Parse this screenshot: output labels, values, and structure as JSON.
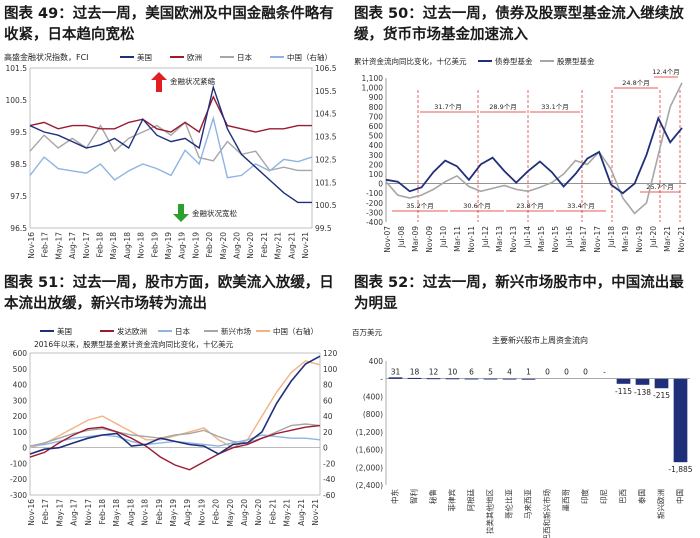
{
  "panels": [
    {
      "title": "图表 49：过去一周，美国欧洲及中国金融条件略有收紧，日本趋向宽松"
    },
    {
      "title": "图表 50：过去一周，债券及股票型基金流入继续放缓，货币市场基金加速流入"
    },
    {
      "title": "图表 51：过去一周，股市方面，欧美流入放缓，日本流出放缓，新兴市场转为流出"
    },
    {
      "title": "图表 52：过去一周，新兴市场股市中，中国流出最为明显"
    }
  ],
  "colors": {
    "navy": "#1f2f7a",
    "darkred": "#9b1b30",
    "gray": "#a6a6a6",
    "lightblue": "#8fb4e3",
    "orange": "#f4b183",
    "red": "#e02020",
    "green": "#2ca02c"
  },
  "chart_data": [
    {
      "type": "line",
      "title": "高盛金融状况指数，FCI",
      "legend": [
        "美国",
        "欧洲",
        "日本",
        "中国（右轴）"
      ],
      "yticks_left": [
        "101.5",
        "100.5",
        "99.5",
        "98.5",
        "97.5",
        "96.5"
      ],
      "yticks_right": [
        "106.5",
        "105.5",
        "104.5",
        "103.5",
        "102.5",
        "101.5",
        "100.5",
        "99.5"
      ],
      "ylim_left": [
        96.5,
        101.5
      ],
      "ylim_right": [
        99.5,
        106.5
      ],
      "xticks": [
        "Nov-16",
        "Feb-17",
        "May-17",
        "Aug-17",
        "Nov-17",
        "Feb-18",
        "May-18",
        "Aug-18",
        "Nov-18",
        "Feb-19",
        "May-19",
        "Aug-19",
        "Nov-19",
        "Feb-20",
        "May-20",
        "Aug-20",
        "Nov-20",
        "Feb-21",
        "May-21",
        "Aug-21",
        "Nov-21"
      ],
      "annotations": [
        "金融状况紧缩",
        "金融状况宽松"
      ],
      "series": [
        {
          "name": "美国",
          "values": [
            99.7,
            99.5,
            99.4,
            99.2,
            99.0,
            99.1,
            99.3,
            99.0,
            99.9,
            99.4,
            99.2,
            99.3,
            99.0,
            100.9,
            99.6,
            98.8,
            98.4,
            98.0,
            97.6,
            97.3,
            97.3
          ]
        },
        {
          "name": "欧洲",
          "values": [
            99.7,
            99.8,
            99.6,
            99.7,
            99.7,
            99.6,
            99.6,
            99.8,
            99.9,
            99.6,
            99.5,
            99.8,
            99.5,
            100.6,
            99.7,
            99.6,
            99.5,
            99.6,
            99.6,
            99.7,
            99.7
          ]
        },
        {
          "name": "日本",
          "values": [
            98.9,
            99.4,
            99.0,
            99.3,
            99.0,
            99.7,
            98.9,
            99.3,
            99.5,
            99.7,
            99.4,
            99.8,
            98.7,
            98.6,
            99.2,
            98.8,
            98.9,
            98.3,
            98.4,
            98.3,
            98.3
          ]
        },
        {
          "name": "中国（右轴）",
          "values": [
            101.8,
            102.6,
            102.1,
            102.0,
            101.9,
            102.3,
            101.6,
            102.0,
            102.3,
            102.1,
            101.8,
            102.9,
            102.3,
            104.3,
            101.7,
            101.8,
            102.3,
            102.0,
            102.5,
            102.4,
            102.6
          ]
        }
      ]
    },
    {
      "type": "line",
      "title": "累计资金流向同比变化，十亿美元",
      "legend": [
        "债券型基金",
        "股票型基金"
      ],
      "yticks": [
        "1,100",
        "1,000",
        "900",
        "800",
        "700",
        "600",
        "500",
        "400",
        "300",
        "200",
        "100",
        "0",
        "-100",
        "-200",
        "-300",
        "-400"
      ],
      "ylim": [
        -400,
        1100
      ],
      "xticks": [
        "Nov-07",
        "Jul-08",
        "Mar-09",
        "Nov-09",
        "Jul-10",
        "Mar-11",
        "Nov-11",
        "Jul-12",
        "Mar-13",
        "Nov-13",
        "Jul-14",
        "Mar-15",
        "Nov-15",
        "Jul-16",
        "Mar-17",
        "Nov-17",
        "Jul-18",
        "Mar-19",
        "Nov-19",
        "Jul-20",
        "Mar-21",
        "Nov-21"
      ],
      "annotations": [
        "31.7个月",
        "28.9个月",
        "33.1个月",
        "24.8个月",
        "12.4个月",
        "35.2个月",
        "30.6个月",
        "23.8个月",
        "33.4个月",
        "25.7个月"
      ],
      "series": [
        {
          "name": "债券型基金",
          "values": [
            40,
            20,
            -80,
            -40,
            120,
            240,
            180,
            40,
            200,
            270,
            130,
            10,
            130,
            230,
            120,
            -30,
            100,
            260,
            330,
            -10,
            -100,
            0,
            300,
            680,
            430,
            580
          ]
        },
        {
          "name": "股票型基金",
          "values": [
            20,
            -120,
            -150,
            -120,
            -60,
            20,
            80,
            -30,
            -80,
            -50,
            -20,
            -60,
            -80,
            -40,
            10,
            100,
            240,
            200,
            330,
            150,
            -150,
            -310,
            -200,
            300,
            800,
            1050
          ]
        }
      ]
    },
    {
      "type": "line",
      "title": "2016年以来，股票型基金累计资金流向同比变化，十亿美元",
      "legend": [
        "美国",
        "发达欧洲",
        "日本",
        "新兴市场",
        "中国（右轴）"
      ],
      "yticks_left": [
        "600",
        "500",
        "400",
        "300",
        "200",
        "100",
        "0",
        "-100",
        "-200",
        "-300"
      ],
      "yticks_right": [
        "120",
        "100",
        "80",
        "60",
        "40",
        "20",
        "0",
        "-20",
        "-40",
        "-60"
      ],
      "ylim_left": [
        -300,
        600
      ],
      "ylim_right": [
        -60,
        120
      ],
      "xticks": [
        "Nov-16",
        "Feb-17",
        "May-17",
        "Aug-17",
        "Nov-17",
        "Feb-18",
        "May-18",
        "Aug-18",
        "Nov-18",
        "Feb-19",
        "May-19",
        "Aug-19",
        "Nov-19",
        "Feb-20",
        "May-20",
        "Aug-20",
        "Nov-20",
        "Feb-21",
        "May-21",
        "Aug-21",
        "Nov-21"
      ],
      "series": [
        {
          "name": "美国",
          "values": [
            -40,
            -10,
            0,
            30,
            60,
            80,
            90,
            10,
            20,
            60,
            40,
            20,
            10,
            -40,
            20,
            30,
            100,
            280,
            420,
            530,
            580
          ]
        },
        {
          "name": "发达欧洲",
          "values": [
            -60,
            -30,
            30,
            80,
            120,
            130,
            100,
            60,
            10,
            -60,
            -110,
            -140,
            -90,
            -40,
            0,
            20,
            60,
            90,
            110,
            130,
            140
          ]
        },
        {
          "name": "日本",
          "values": [
            10,
            20,
            40,
            60,
            70,
            80,
            70,
            40,
            20,
            30,
            40,
            30,
            20,
            10,
            30,
            50,
            80,
            70,
            60,
            60,
            50
          ]
        },
        {
          "name": "新兴市场",
          "values": [
            10,
            30,
            60,
            90,
            110,
            120,
            100,
            80,
            70,
            60,
            80,
            90,
            110,
            70,
            40,
            30,
            60,
            100,
            140,
            150,
            140
          ]
        },
        {
          "name": "中国（右轴）",
          "values": [
            0,
            5,
            15,
            25,
            35,
            40,
            30,
            20,
            10,
            10,
            15,
            20,
            25,
            10,
            0,
            10,
            40,
            70,
            95,
            110,
            105
          ]
        }
      ]
    },
    {
      "type": "bar",
      "title": "主要新兴股市上周资金流向",
      "ylabel": "百万美元",
      "yticks": [
        "400",
        "-",
        "(400)",
        "(800)",
        "(1,200)",
        "(1,600)",
        "(2,000)",
        "(2,400)"
      ],
      "ylim": [
        -2400,
        400
      ],
      "categories": [
        "中东",
        "智利",
        "秘鲁",
        "菲律宾",
        "阿根廷",
        "拉美其他地区",
        "哥伦比亚",
        "马来西亚",
        "巴西和新兴市场",
        "墨西哥",
        "印度",
        "印尼",
        "巴西",
        "泰国",
        "新兴欧洲",
        "中国"
      ],
      "value_labels": [
        "31",
        "18",
        "12",
        "10",
        "6",
        "5",
        "4",
        "1",
        "0",
        "0",
        "0",
        "-",
        "-115",
        "-138",
        "-215",
        "-1,885"
      ],
      "values": [
        31,
        18,
        12,
        10,
        6,
        5,
        4,
        1,
        0,
        0,
        0,
        0,
        -115,
        -138,
        -215,
        -1885
      ]
    }
  ]
}
